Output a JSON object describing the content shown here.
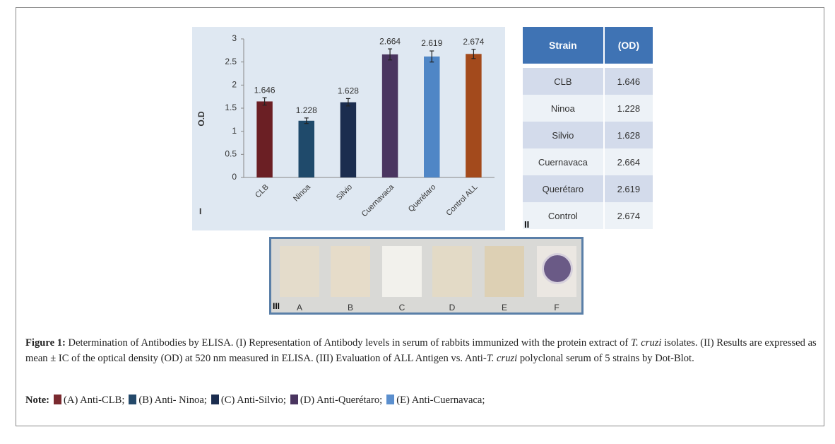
{
  "chart_data": {
    "type": "bar",
    "panel_label": "I",
    "y_label": "O.D",
    "categories": [
      "CLB",
      "Ninoa",
      "Silvio",
      "Cuernavaca",
      "Querétaro",
      "Control ALL"
    ],
    "values": [
      1.646,
      1.228,
      1.628,
      2.664,
      2.619,
      2.674
    ],
    "errors": [
      0.08,
      0.06,
      0.08,
      0.12,
      0.12,
      0.1
    ],
    "colors": [
      "#6b1f24",
      "#1f4a6b",
      "#1b2d4f",
      "#4a3560",
      "#4f86c6",
      "#a34a1c"
    ],
    "ylim": [
      0,
      3
    ],
    "yticks": [
      0,
      0.5,
      1,
      1.5,
      2,
      2.5,
      3
    ],
    "grid": false
  },
  "table": {
    "panel_label": "II",
    "header": [
      "Strain",
      "(OD)"
    ],
    "rows": [
      [
        "CLB",
        "1.646"
      ],
      [
        "Ninoa",
        "1.228"
      ],
      [
        "Silvio",
        "1.628"
      ],
      [
        "Cuernavaca",
        "2.664"
      ],
      [
        "Querétaro",
        "2.619"
      ],
      [
        "Control",
        "2.674"
      ]
    ]
  },
  "dot_blot": {
    "panel_label": "III",
    "lanes": [
      "A",
      "B",
      "C",
      "D",
      "E",
      "F"
    ]
  },
  "caption": {
    "label": "Figure 1:",
    "parts": [
      " Determination of Antibodies by ELISA. (I) Representation of Antibody levels in serum of rabbits immunized with the protein extract of ",
      "T. cruzi",
      " isolates. (II) Results are expressed as mean ± IC of the optical density (OD) at 520 nm measured in ELISA. (III) Evaluation of ALL Antigen vs. Anti-",
      "T. cruzi",
      " polyclonal serum of 5 strains by Dot-Blot."
    ]
  },
  "note": {
    "label": "Note:",
    "items": [
      {
        "color": "#7a2a2f",
        "text": "(A) Anti-CLB;"
      },
      {
        "color": "#24496a",
        "text": "(B) Anti- Ninoa;"
      },
      {
        "color": "#1b2d4f",
        "text": "(C) Anti-Silvio;"
      },
      {
        "color": "#4a3560",
        "text": "(D) Anti-Querétaro;"
      },
      {
        "color": "#5b8fce",
        "text": "(E) Anti-Cuernavaca;"
      }
    ]
  }
}
